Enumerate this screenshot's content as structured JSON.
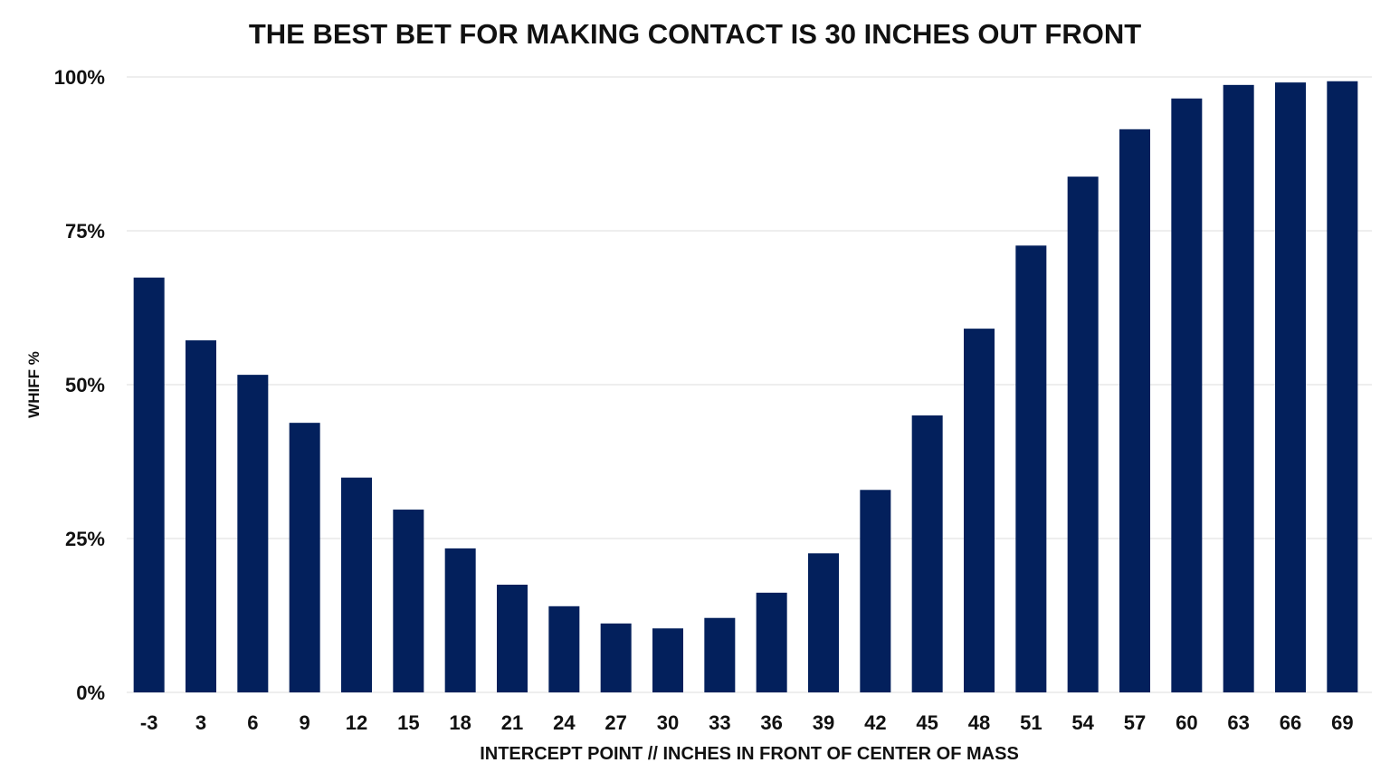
{
  "chart_data": {
    "type": "bar",
    "title": "THE BEST BET FOR MAKING CONTACT IS 30 INCHES OUT FRONT",
    "xlabel": "INTERCEPT POINT // INCHES IN FRONT OF CENTER OF MASS",
    "ylabel": "WHIFF %",
    "categories": [
      "-3",
      "3",
      "6",
      "9",
      "12",
      "15",
      "18",
      "21",
      "24",
      "27",
      "30",
      "33",
      "36",
      "39",
      "42",
      "45",
      "48",
      "51",
      "54",
      "57",
      "60",
      "63",
      "66",
      "69"
    ],
    "values": [
      67.4,
      57.2,
      51.6,
      43.8,
      34.9,
      29.7,
      23.4,
      17.5,
      14.0,
      11.2,
      10.4,
      12.1,
      16.2,
      22.6,
      32.9,
      45.0,
      59.1,
      72.6,
      83.8,
      91.5,
      96.5,
      98.7,
      99.1,
      99.3
    ],
    "ylim": [
      0,
      100
    ],
    "yticks": [
      0,
      25,
      50,
      75,
      100
    ],
    "ytick_labels": [
      "0%",
      "25%",
      "50%",
      "75%",
      "100%"
    ],
    "grid": "horizontal",
    "legend": "none",
    "bar_color": "#03205c",
    "grid_color": "#dddddd"
  }
}
